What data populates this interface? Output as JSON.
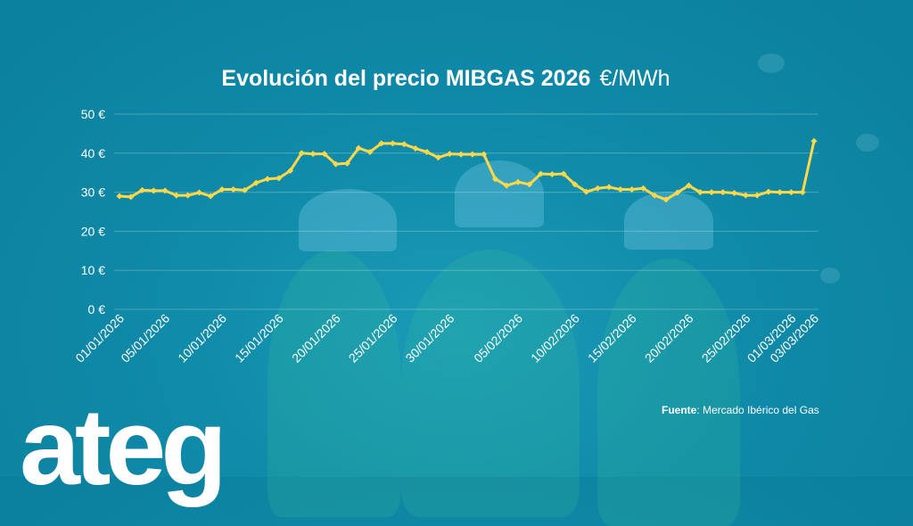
{
  "chart_data": {
    "type": "line",
    "title": "Evolución del precio MIBGAS 2026",
    "unit": "€/MWh",
    "ylim": [
      0,
      50
    ],
    "y_ticks": [
      "0 €",
      "10 €",
      "20 €",
      "30 €",
      "40 €",
      "50 €"
    ],
    "y_tick_values": [
      0,
      10,
      20,
      30,
      40,
      50
    ],
    "grid": true,
    "line_color": "#ffd84a",
    "x_tick_labels": [
      "01/01/2026",
      "05/01/2026",
      "10/01/2026",
      "15/01/2026",
      "20/01/2026",
      "25/01/2026",
      "30/01/2026",
      "05/02/2026",
      "10/02/2026",
      "15/02/2026",
      "20/02/2026",
      "25/02/2026",
      "01/03/2026",
      "03/03/2026"
    ],
    "x": [
      "01/01/2026",
      "02/01/2026",
      "03/01/2026",
      "04/01/2026",
      "05/01/2026",
      "06/01/2026",
      "07/01/2026",
      "08/01/2026",
      "09/01/2026",
      "10/01/2026",
      "11/01/2026",
      "12/01/2026",
      "13/01/2026",
      "14/01/2026",
      "15/01/2026",
      "16/01/2026",
      "17/01/2026",
      "18/01/2026",
      "19/01/2026",
      "20/01/2026",
      "21/01/2026",
      "22/01/2026",
      "23/01/2026",
      "24/01/2026",
      "25/01/2026",
      "26/01/2026",
      "27/01/2026",
      "28/01/2026",
      "29/01/2026",
      "30/01/2026",
      "31/01/2026",
      "01/02/2026",
      "02/02/2026",
      "03/02/2026",
      "04/02/2026",
      "05/02/2026",
      "06/02/2026",
      "07/02/2026",
      "08/02/2026",
      "09/02/2026",
      "10/02/2026",
      "11/02/2026",
      "12/02/2026",
      "13/02/2026",
      "14/02/2026",
      "15/02/2026",
      "16/02/2026",
      "17/02/2026",
      "18/02/2026",
      "19/02/2026",
      "20/02/2026",
      "21/02/2026",
      "22/02/2026",
      "23/02/2026",
      "24/02/2026",
      "25/02/2026",
      "26/02/2026",
      "27/02/2026",
      "28/02/2026",
      "01/03/2026",
      "02/03/2026",
      "03/03/2026"
    ],
    "values": [
      29.0,
      28.8,
      30.5,
      30.4,
      30.4,
      29.2,
      29.2,
      29.9,
      29.0,
      30.7,
      30.7,
      30.5,
      32.4,
      33.4,
      33.6,
      35.5,
      40.0,
      39.8,
      39.8,
      37.2,
      37.4,
      41.3,
      40.3,
      42.5,
      42.5,
      42.3,
      41.2,
      40.3,
      38.9,
      39.8,
      39.7,
      39.7,
      39.7,
      33.4,
      31.7,
      32.6,
      32.0,
      34.7,
      34.6,
      34.7,
      32.0,
      30.1,
      31.0,
      31.3,
      30.7,
      30.7,
      31.0,
      29.2,
      28.1,
      29.9,
      31.7,
      30.0,
      30.0,
      30.0,
      29.8,
      29.2,
      29.2,
      30.1,
      30.0,
      30.0,
      30.0,
      43.1
    ]
  },
  "source": {
    "label": "Fuente",
    "text": ": Mercado Ibérico del Gas"
  },
  "logo": {
    "text": "ateg"
  }
}
